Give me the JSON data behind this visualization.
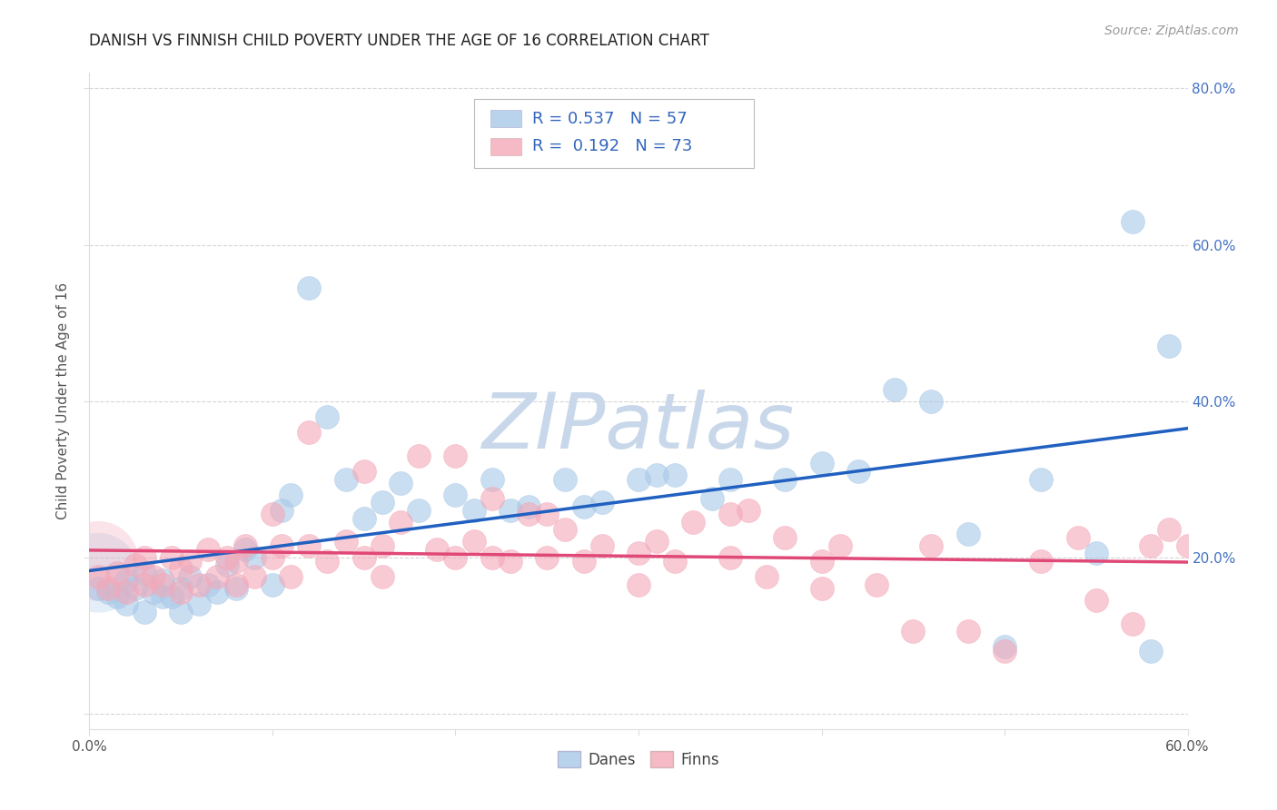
{
  "title": "DANISH VS FINNISH CHILD POVERTY UNDER THE AGE OF 16 CORRELATION CHART",
  "source": "Source: ZipAtlas.com",
  "ylabel": "Child Poverty Under the Age of 16",
  "xlim": [
    0.0,
    0.6
  ],
  "ylim": [
    -0.02,
    0.82
  ],
  "xticks": [
    0.0,
    0.1,
    0.2,
    0.3,
    0.4,
    0.5,
    0.6
  ],
  "xticklabels": [
    "0.0%",
    "",
    "",
    "",
    "",
    "",
    "60.0%"
  ],
  "yticks": [
    0.0,
    0.2,
    0.4,
    0.6,
    0.8
  ],
  "yticklabels_right": [
    "",
    "20.0%",
    "40.0%",
    "60.0%",
    "80.0%"
  ],
  "danes_R": 0.537,
  "danes_N": 57,
  "finns_R": 0.192,
  "finns_N": 73,
  "blue_color": "#a8c8e8",
  "pink_color": "#f4a8b8",
  "blue_line_color": "#2060c0",
  "pink_line_color": "#e04878",
  "watermark": "ZIPatlas",
  "watermark_color": "#c8d8ea",
  "danes_x": [
    0.005,
    0.01,
    0.015,
    0.02,
    0.02,
    0.025,
    0.03,
    0.03,
    0.035,
    0.04,
    0.04,
    0.045,
    0.05,
    0.05,
    0.055,
    0.06,
    0.065,
    0.07,
    0.075,
    0.08,
    0.085,
    0.09,
    0.1,
    0.105,
    0.11,
    0.12,
    0.13,
    0.14,
    0.15,
    0.16,
    0.17,
    0.18,
    0.2,
    0.21,
    0.22,
    0.23,
    0.24,
    0.26,
    0.27,
    0.28,
    0.3,
    0.31,
    0.32,
    0.34,
    0.35,
    0.38,
    0.4,
    0.42,
    0.44,
    0.46,
    0.48,
    0.5,
    0.52,
    0.55,
    0.57,
    0.58,
    0.59
  ],
  "danes_y": [
    0.16,
    0.155,
    0.15,
    0.14,
    0.17,
    0.16,
    0.13,
    0.18,
    0.155,
    0.15,
    0.17,
    0.15,
    0.13,
    0.16,
    0.175,
    0.14,
    0.165,
    0.155,
    0.19,
    0.16,
    0.21,
    0.2,
    0.165,
    0.26,
    0.28,
    0.545,
    0.38,
    0.3,
    0.25,
    0.27,
    0.295,
    0.26,
    0.28,
    0.26,
    0.3,
    0.26,
    0.265,
    0.3,
    0.265,
    0.27,
    0.3,
    0.305,
    0.305,
    0.275,
    0.3,
    0.3,
    0.32,
    0.31,
    0.415,
    0.4,
    0.23,
    0.085,
    0.3,
    0.205,
    0.63,
    0.08,
    0.47
  ],
  "finns_x": [
    0.005,
    0.01,
    0.015,
    0.02,
    0.025,
    0.03,
    0.03,
    0.035,
    0.04,
    0.045,
    0.05,
    0.055,
    0.06,
    0.065,
    0.07,
    0.075,
    0.08,
    0.085,
    0.09,
    0.1,
    0.105,
    0.11,
    0.12,
    0.13,
    0.14,
    0.15,
    0.16,
    0.17,
    0.18,
    0.19,
    0.2,
    0.21,
    0.22,
    0.23,
    0.24,
    0.25,
    0.26,
    0.27,
    0.28,
    0.3,
    0.31,
    0.32,
    0.33,
    0.35,
    0.36,
    0.37,
    0.38,
    0.4,
    0.41,
    0.43,
    0.45,
    0.46,
    0.48,
    0.5,
    0.52,
    0.54,
    0.55,
    0.57,
    0.58,
    0.59,
    0.6,
    0.15,
    0.2,
    0.25,
    0.3,
    0.35,
    0.4,
    0.12,
    0.22,
    0.16,
    0.05,
    0.08,
    0.1
  ],
  "finns_y": [
    0.175,
    0.16,
    0.18,
    0.155,
    0.19,
    0.165,
    0.2,
    0.175,
    0.165,
    0.2,
    0.155,
    0.195,
    0.165,
    0.21,
    0.175,
    0.2,
    0.165,
    0.215,
    0.175,
    0.2,
    0.215,
    0.175,
    0.215,
    0.195,
    0.22,
    0.2,
    0.215,
    0.245,
    0.33,
    0.21,
    0.2,
    0.22,
    0.2,
    0.195,
    0.255,
    0.2,
    0.235,
    0.195,
    0.215,
    0.205,
    0.22,
    0.195,
    0.245,
    0.2,
    0.26,
    0.175,
    0.225,
    0.195,
    0.215,
    0.165,
    0.105,
    0.215,
    0.105,
    0.08,
    0.195,
    0.225,
    0.145,
    0.115,
    0.215,
    0.235,
    0.215,
    0.31,
    0.33,
    0.255,
    0.165,
    0.255,
    0.16,
    0.36,
    0.275,
    0.175,
    0.185,
    0.195,
    0.255
  ]
}
